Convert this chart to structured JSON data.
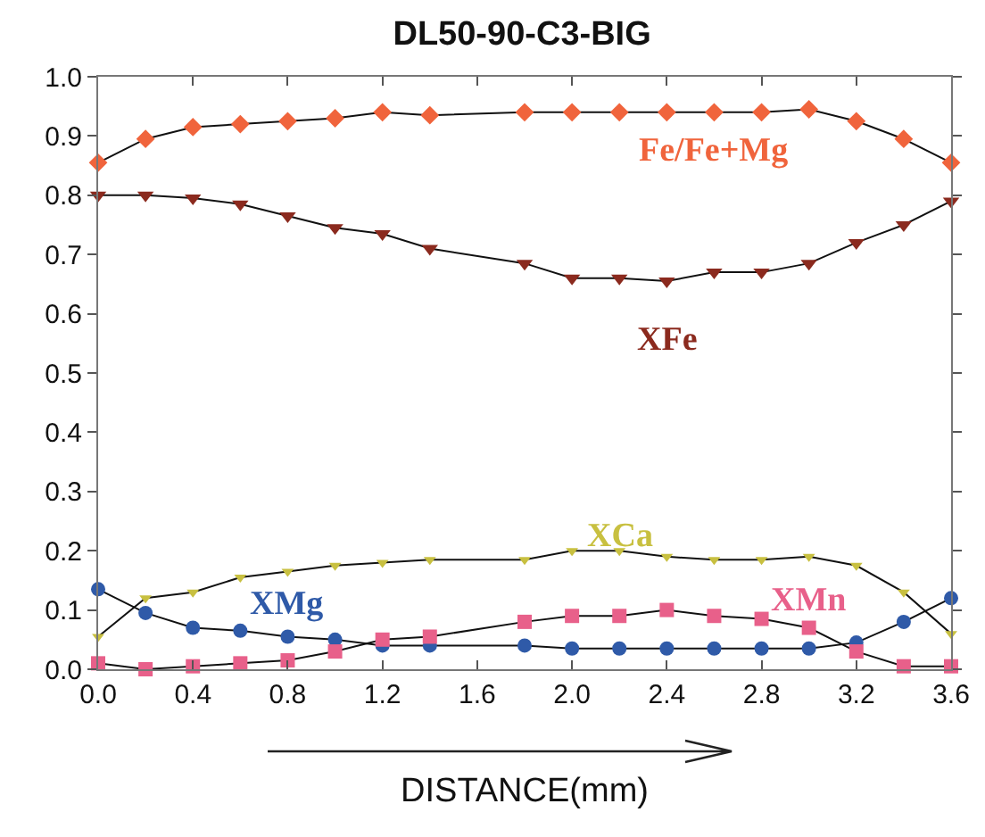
{
  "chart_data": {
    "type": "line",
    "title": "DL50-90-C3-BIG",
    "xlabel": "DISTANCE(mm)",
    "x": [
      0,
      0.2,
      0.4,
      0.6,
      0.8,
      1.0,
      1.2,
      1.4,
      1.8,
      2.0,
      2.2,
      2.4,
      2.6,
      2.8,
      3.0,
      3.2,
      3.4,
      3.6
    ],
    "series": [
      {
        "name": "Fe/Fe+Mg",
        "color": "#f0643c",
        "marker": "diamond",
        "values": [
          0.855,
          0.895,
          0.915,
          0.92,
          0.925,
          0.93,
          0.94,
          0.935,
          0.94,
          0.94,
          0.94,
          0.94,
          0.94,
          0.94,
          0.945,
          0.925,
          0.895,
          0.855
        ]
      },
      {
        "name": "XFe",
        "color": "#8b2a1e",
        "marker": "triangle",
        "values": [
          0.8,
          0.8,
          0.795,
          0.785,
          0.765,
          0.745,
          0.735,
          0.71,
          0.685,
          0.66,
          0.66,
          0.655,
          0.67,
          0.67,
          0.685,
          0.72,
          0.75,
          0.79
        ]
      },
      {
        "name": "XCa",
        "color": "#c8c040",
        "marker": "triangle",
        "values": [
          0.055,
          0.12,
          0.13,
          0.155,
          0.165,
          0.175,
          0.18,
          0.185,
          0.185,
          0.2,
          0.2,
          0.19,
          0.185,
          0.185,
          0.19,
          0.175,
          0.13,
          0.06
        ]
      },
      {
        "name": "XMg",
        "color": "#2f5aa8",
        "marker": "circle",
        "values": [
          0.135,
          0.095,
          0.07,
          0.065,
          0.055,
          0.05,
          0.04,
          0.04,
          0.04,
          0.035,
          0.035,
          0.035,
          0.035,
          0.035,
          0.035,
          0.045,
          0.08,
          0.12
        ]
      },
      {
        "name": "XMn",
        "color": "#e8608a",
        "marker": "square",
        "values": [
          0.01,
          0,
          0.005,
          0.01,
          0.015,
          0.03,
          0.05,
          0.055,
          0.08,
          0.09,
          0.09,
          0.1,
          0.09,
          0.085,
          0.07,
          0.03,
          0.005,
          0.005
        ]
      }
    ],
    "xlim": [
      0,
      3.6
    ],
    "xticks": [
      {
        "value": 0,
        "label": "0.0"
      },
      0.4,
      0.8,
      1.2,
      1.6,
      {
        "value": 2,
        "label": "2.0"
      },
      2.4,
      2.8,
      3.2,
      3.6
    ],
    "ylim": [
      0,
      1
    ],
    "yticks": [
      {
        "value": 0,
        "label": "0.0"
      },
      0.1,
      0.2,
      0.3,
      0.4,
      0.5,
      0.6,
      0.7,
      0.8,
      0.9,
      {
        "value": 1,
        "label": "1.0"
      }
    ],
    "grid": false,
    "legend": false
  }
}
